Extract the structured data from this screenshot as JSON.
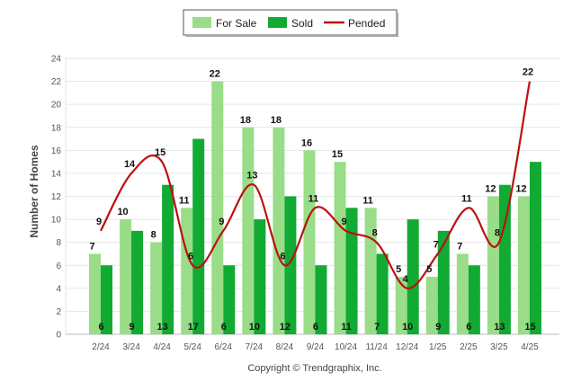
{
  "chart_data": {
    "type": "bar",
    "ylabel": "Number of Homes",
    "ylim": [
      0,
      24
    ],
    "yticks": [
      0,
      2,
      4,
      6,
      8,
      10,
      12,
      14,
      16,
      18,
      20,
      22,
      24
    ],
    "grid": true,
    "legend_position": "top-center",
    "categories": [
      "2/24",
      "3/24",
      "4/24",
      "5/24",
      "6/24",
      "7/24",
      "8/24",
      "9/24",
      "10/24",
      "11/24",
      "12/24",
      "1/25",
      "2/25",
      "3/25",
      "4/25"
    ],
    "series": [
      {
        "name": "For Sale",
        "kind": "bar",
        "color": "#99dd88",
        "values": [
          7,
          10,
          8,
          11,
          22,
          18,
          18,
          16,
          15,
          11,
          5,
          5,
          7,
          12,
          12
        ]
      },
      {
        "name": "Sold",
        "kind": "bar",
        "color": "#11aa33",
        "values": [
          6,
          9,
          13,
          17,
          6,
          10,
          12,
          6,
          11,
          7,
          10,
          9,
          6,
          13,
          15
        ]
      },
      {
        "name": "Pended",
        "kind": "line",
        "color": "#bb1111",
        "values": [
          9,
          14,
          15,
          6,
          9,
          13,
          6,
          11,
          9,
          8,
          4,
          7,
          11,
          8,
          22
        ]
      }
    ]
  },
  "footer": "Copyright © Trendgraphix, Inc."
}
